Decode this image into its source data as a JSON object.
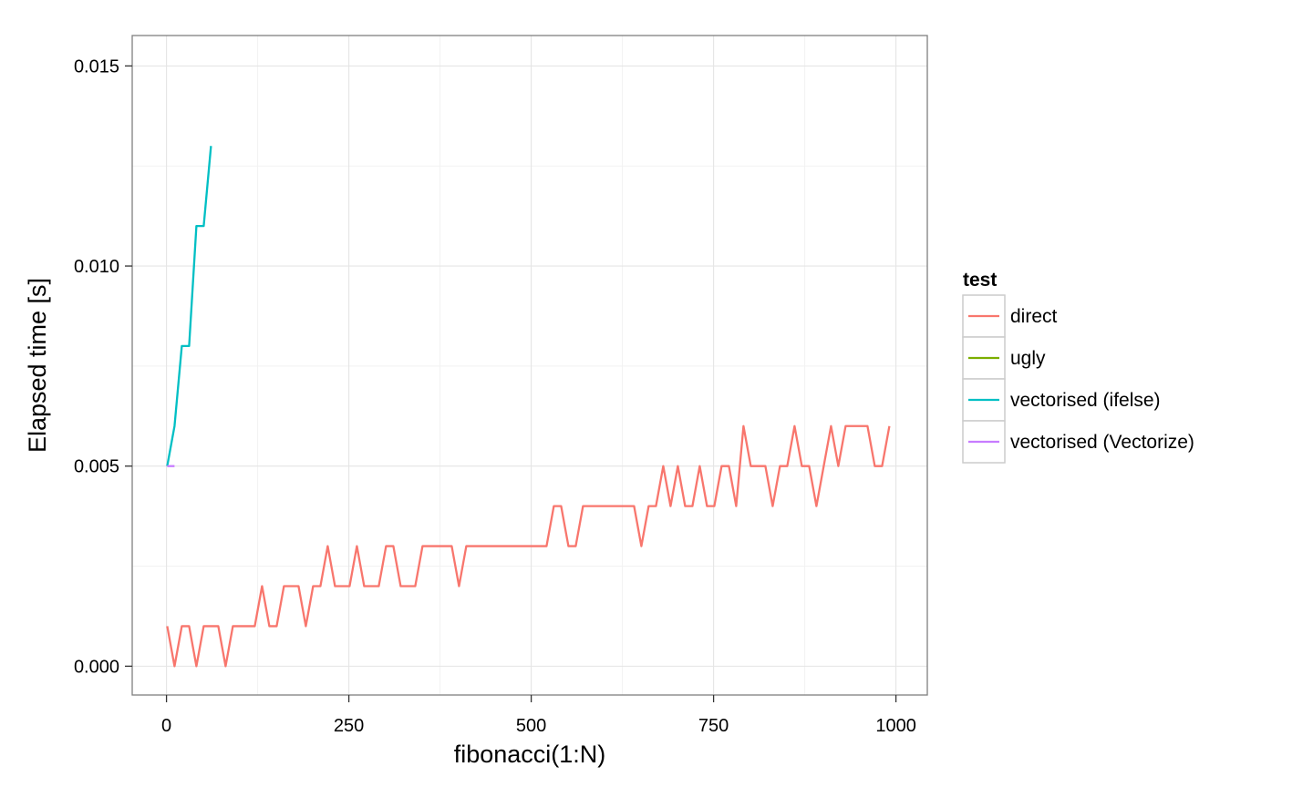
{
  "chart_data": {
    "type": "line",
    "title": "",
    "xlabel": "fibonacci(1:N)",
    "ylabel": "Elapsed time [s]",
    "xlim": [
      -47,
      1043
    ],
    "ylim": [
      -0.00072,
      0.01576
    ],
    "x_ticks": [
      0,
      250,
      500,
      750,
      1000
    ],
    "x_tick_labels": [
      "0",
      "250",
      "500",
      "750",
      "1000"
    ],
    "y_ticks": [
      0,
      0.005,
      0.01,
      0.015
    ],
    "y_tick_labels": [
      "0.000",
      "0.005",
      "0.010",
      "0.015"
    ],
    "grid": true,
    "legend": {
      "title": "test",
      "placement": "right"
    },
    "series": [
      {
        "name": "direct",
        "color": "#F8766D",
        "x": [
          1,
          11,
          21,
          31,
          41,
          51,
          61,
          71,
          81,
          91,
          101,
          111,
          121,
          131,
          141,
          151,
          161,
          171,
          181,
          191,
          201,
          211,
          221,
          231,
          241,
          251,
          261,
          271,
          281,
          291,
          301,
          311,
          321,
          331,
          341,
          351,
          361,
          371,
          381,
          391,
          401,
          411,
          421,
          431,
          441,
          451,
          461,
          471,
          481,
          491,
          501,
          511,
          521,
          531,
          541,
          551,
          561,
          571,
          581,
          591,
          601,
          611,
          621,
          631,
          641,
          651,
          661,
          671,
          681,
          691,
          701,
          711,
          721,
          731,
          741,
          751,
          761,
          771,
          781,
          791,
          801,
          811,
          821,
          831,
          841,
          851,
          861,
          871,
          881,
          891,
          901,
          911,
          921,
          931,
          941,
          951,
          961,
          971,
          981,
          991
        ],
        "y": [
          0.001,
          0,
          0.001,
          0.001,
          0,
          0.001,
          0.001,
          0.001,
          0,
          0.001,
          0.001,
          0.001,
          0.001,
          0.002,
          0.001,
          0.001,
          0.002,
          0.002,
          0.002,
          0.001,
          0.002,
          0.002,
          0.003,
          0.002,
          0.002,
          0.002,
          0.003,
          0.002,
          0.002,
          0.002,
          0.003,
          0.003,
          0.002,
          0.002,
          0.002,
          0.003,
          0.003,
          0.003,
          0.003,
          0.003,
          0.002,
          0.003,
          0.003,
          0.003,
          0.003,
          0.003,
          0.003,
          0.003,
          0.003,
          0.003,
          0.003,
          0.003,
          0.003,
          0.004,
          0.004,
          0.003,
          0.003,
          0.004,
          0.004,
          0.004,
          0.004,
          0.004,
          0.004,
          0.004,
          0.004,
          0.003,
          0.004,
          0.004,
          0.005,
          0.004,
          0.005,
          0.004,
          0.004,
          0.005,
          0.004,
          0.004,
          0.005,
          0.005,
          0.004,
          0.006,
          0.005,
          0.005,
          0.005,
          0.004,
          0.005,
          0.005,
          0.006,
          0.005,
          0.005,
          0.004,
          0.005,
          0.006,
          0.005,
          0.006,
          0.006,
          0.006,
          0.006,
          0.005,
          0.005,
          0.006
        ]
      },
      {
        "name": "ugly",
        "color": "#7CAE00",
        "x": [],
        "y": []
      },
      {
        "name": "vectorised (ifelse)",
        "color": "#00BFC4",
        "x": [
          1,
          11,
          21,
          31,
          41,
          51,
          61
        ],
        "y": [
          0.005,
          0.006,
          0.008,
          0.008,
          0.011,
          0.011,
          0.013
        ]
      },
      {
        "name": "vectorised (Vectorize)",
        "color": "#C77CFF",
        "x": [
          1,
          11
        ],
        "y": [
          0.005,
          0.005
        ]
      }
    ]
  }
}
